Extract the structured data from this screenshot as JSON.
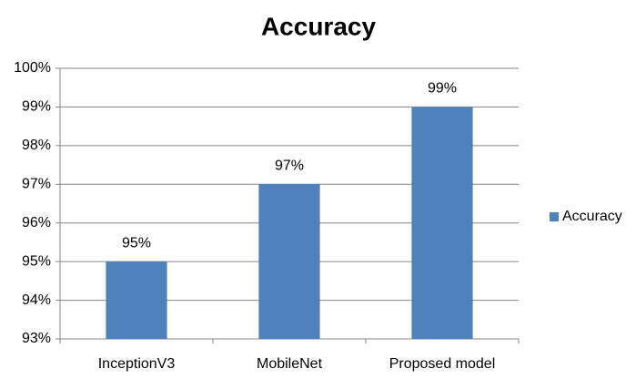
{
  "chart_data": {
    "type": "bar",
    "title": "Accuracy",
    "categories": [
      "InceptionV3",
      "MobileNet",
      "Proposed model"
    ],
    "series": [
      {
        "name": "Accuracy",
        "color": "#4f81bd",
        "values": [
          95,
          97,
          99
        ],
        "value_labels": [
          "95%",
          "97%",
          "99%"
        ]
      }
    ],
    "ylim": [
      93,
      100
    ],
    "yticks": [
      {
        "value": 93,
        "label": "93%"
      },
      {
        "value": 94,
        "label": "94%"
      },
      {
        "value": 95,
        "label": "95%"
      },
      {
        "value": 96,
        "label": "96%"
      },
      {
        "value": 97,
        "label": "97%"
      },
      {
        "value": 98,
        "label": "98%"
      },
      {
        "value": 99,
        "label": "99%"
      },
      {
        "value": 100,
        "label": "100%"
      }
    ],
    "grid": true,
    "legend": "right"
  }
}
